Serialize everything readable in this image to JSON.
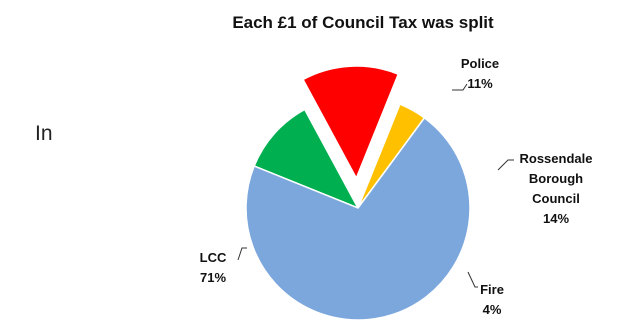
{
  "stray_text": "In",
  "chart_data": {
    "type": "pie",
    "title": "Each £1 of Council Tax  was split",
    "slices": [
      {
        "label": "Police",
        "value": 11,
        "value_label": "11%",
        "color": "#00b050",
        "exploded": false,
        "label_lines": [
          "Police"
        ]
      },
      {
        "label": "Rossendale Borough Council",
        "value": 14,
        "value_label": "14%",
        "color": "#ff0000",
        "exploded": true,
        "label_lines": [
          "Rossendale",
          "Borough",
          "Council"
        ]
      },
      {
        "label": "Fire",
        "value": 4,
        "value_label": "4%",
        "color": "#ffc000",
        "exploded": false,
        "label_lines": [
          "Fire"
        ]
      },
      {
        "label": "LCC",
        "value": 71,
        "value_label": "71%",
        "color": "#7ba7dd",
        "exploded": false,
        "label_lines": [
          "LCC"
        ]
      }
    ],
    "legend": "none"
  }
}
